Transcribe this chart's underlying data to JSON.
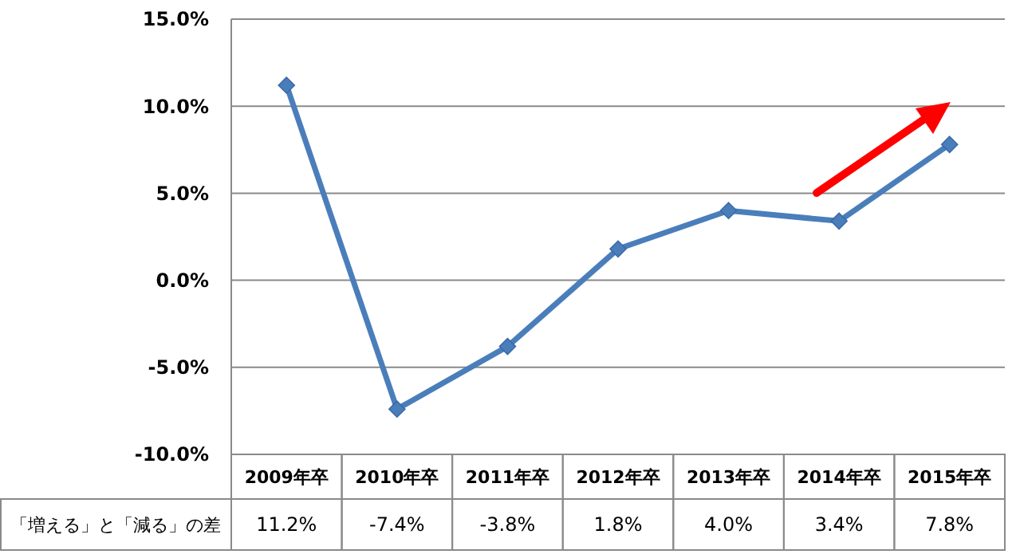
{
  "chart_data": {
    "type": "line",
    "categories": [
      "2009年卒",
      "2010年卒",
      "2011年卒",
      "2012年卒",
      "2013年卒",
      "2014年卒",
      "2015年卒"
    ],
    "series": [
      {
        "name": "「増える」と「減る」の差",
        "color": "#4a7ebb",
        "values": [
          11.2,
          -7.4,
          -3.8,
          1.8,
          4.0,
          3.4,
          7.8
        ],
        "value_labels": [
          "11.2%",
          "-7.4%",
          "-3.8%",
          "1.8%",
          "4.0%",
          "3.4%",
          "7.8%"
        ]
      }
    ],
    "ylim": [
      -10,
      15
    ],
    "yticks": [
      {
        "value": -10,
        "label": "-10.0%"
      },
      {
        "value": -5,
        "label": "-5.0%"
      },
      {
        "value": 0,
        "label": "0.0%"
      },
      {
        "value": 5,
        "label": "5.0%"
      },
      {
        "value": 10,
        "label": "10.0%"
      },
      {
        "value": 15,
        "label": "15.0%"
      }
    ],
    "grid": "y",
    "marker": "diamond",
    "line_style": "solid"
  }
}
